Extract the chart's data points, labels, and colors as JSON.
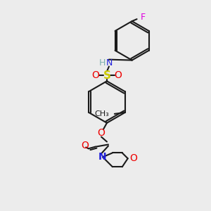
{
  "background_color": "#ececec",
  "bond_color": "#1a1a1a",
  "atom_colors": {
    "F": "#e000e0",
    "N": "#2020dd",
    "H": "#7ab0b0",
    "S": "#cccc00",
    "O": "#ee0000",
    "C": "#1a1a1a"
  },
  "figsize": [
    3.0,
    3.0
  ],
  "dpi": 100,
  "lw": 1.5
}
